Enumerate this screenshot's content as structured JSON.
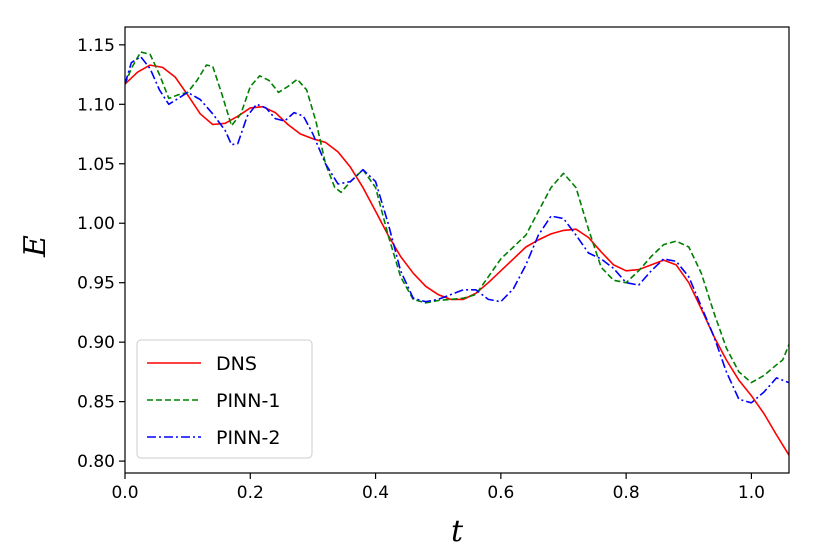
{
  "chart_data": {
    "type": "line",
    "xlabel": "t",
    "ylabel": "E",
    "xlim": [
      0.0,
      1.06
    ],
    "ylim": [
      0.79,
      1.165
    ],
    "x_ticks": [
      0.0,
      0.2,
      0.4,
      0.6,
      0.8,
      1.0
    ],
    "x_tick_labels": [
      "0.0",
      "0.2",
      "0.4",
      "0.6",
      "0.8",
      "1.0"
    ],
    "y_ticks": [
      0.8,
      0.85,
      0.9,
      0.95,
      1.0,
      1.05,
      1.1,
      1.15
    ],
    "y_tick_labels": [
      "0.80",
      "0.85",
      "0.90",
      "0.95",
      "1.00",
      "1.05",
      "1.10",
      "1.15"
    ],
    "grid": false,
    "legend_position": "bottom-left",
    "series": [
      {
        "name": "DNS",
        "color": "#ff0000",
        "style": "solid",
        "points": [
          [
            0.0,
            1.117
          ],
          [
            0.02,
            1.127
          ],
          [
            0.04,
            1.133
          ],
          [
            0.06,
            1.131
          ],
          [
            0.08,
            1.123
          ],
          [
            0.1,
            1.108
          ],
          [
            0.12,
            1.092
          ],
          [
            0.14,
            1.083
          ],
          [
            0.16,
            1.084
          ],
          [
            0.18,
            1.09
          ],
          [
            0.2,
            1.097
          ],
          [
            0.22,
            1.098
          ],
          [
            0.24,
            1.093
          ],
          [
            0.26,
            1.083
          ],
          [
            0.28,
            1.075
          ],
          [
            0.3,
            1.071
          ],
          [
            0.32,
            1.068
          ],
          [
            0.34,
            1.06
          ],
          [
            0.36,
            1.047
          ],
          [
            0.38,
            1.03
          ],
          [
            0.4,
            1.01
          ],
          [
            0.42,
            0.99
          ],
          [
            0.44,
            0.972
          ],
          [
            0.46,
            0.958
          ],
          [
            0.48,
            0.947
          ],
          [
            0.5,
            0.94
          ],
          [
            0.52,
            0.936
          ],
          [
            0.54,
            0.936
          ],
          [
            0.56,
            0.941
          ],
          [
            0.58,
            0.95
          ],
          [
            0.6,
            0.96
          ],
          [
            0.62,
            0.97
          ],
          [
            0.64,
            0.98
          ],
          [
            0.66,
            0.986
          ],
          [
            0.68,
            0.991
          ],
          [
            0.7,
            0.994
          ],
          [
            0.72,
            0.995
          ],
          [
            0.74,
            0.988
          ],
          [
            0.76,
            0.976
          ],
          [
            0.78,
            0.965
          ],
          [
            0.8,
            0.96
          ],
          [
            0.82,
            0.961
          ],
          [
            0.84,
            0.965
          ],
          [
            0.86,
            0.969
          ],
          [
            0.88,
            0.965
          ],
          [
            0.9,
            0.95
          ],
          [
            0.92,
            0.928
          ],
          [
            0.94,
            0.905
          ],
          [
            0.96,
            0.885
          ],
          [
            0.98,
            0.868
          ],
          [
            1.0,
            0.855
          ],
          [
            1.02,
            0.84
          ],
          [
            1.04,
            0.822
          ],
          [
            1.06,
            0.805
          ]
        ]
      },
      {
        "name": "PINN-1",
        "color": "#008000",
        "style": "dashed",
        "points": [
          [
            0.0,
            1.117
          ],
          [
            0.01,
            1.13
          ],
          [
            0.025,
            1.144
          ],
          [
            0.04,
            1.142
          ],
          [
            0.055,
            1.125
          ],
          [
            0.07,
            1.105
          ],
          [
            0.085,
            1.108
          ],
          [
            0.1,
            1.11
          ],
          [
            0.115,
            1.12
          ],
          [
            0.13,
            1.133
          ],
          [
            0.14,
            1.132
          ],
          [
            0.155,
            1.108
          ],
          [
            0.17,
            1.082
          ],
          [
            0.185,
            1.092
          ],
          [
            0.2,
            1.115
          ],
          [
            0.215,
            1.124
          ],
          [
            0.23,
            1.12
          ],
          [
            0.245,
            1.11
          ],
          [
            0.26,
            1.115
          ],
          [
            0.275,
            1.121
          ],
          [
            0.29,
            1.112
          ],
          [
            0.305,
            1.085
          ],
          [
            0.32,
            1.05
          ],
          [
            0.335,
            1.03
          ],
          [
            0.345,
            1.026
          ],
          [
            0.36,
            1.035
          ],
          [
            0.38,
            1.045
          ],
          [
            0.4,
            1.03
          ],
          [
            0.42,
            0.99
          ],
          [
            0.44,
            0.955
          ],
          [
            0.46,
            0.936
          ],
          [
            0.48,
            0.933
          ],
          [
            0.5,
            0.935
          ],
          [
            0.52,
            0.936
          ],
          [
            0.54,
            0.937
          ],
          [
            0.56,
            0.94
          ],
          [
            0.58,
            0.955
          ],
          [
            0.6,
            0.97
          ],
          [
            0.62,
            0.98
          ],
          [
            0.64,
            0.99
          ],
          [
            0.66,
            1.01
          ],
          [
            0.68,
            1.03
          ],
          [
            0.7,
            1.042
          ],
          [
            0.72,
            1.03
          ],
          [
            0.74,
            0.995
          ],
          [
            0.76,
            0.963
          ],
          [
            0.78,
            0.952
          ],
          [
            0.8,
            0.95
          ],
          [
            0.82,
            0.96
          ],
          [
            0.84,
            0.972
          ],
          [
            0.86,
            0.982
          ],
          [
            0.88,
            0.985
          ],
          [
            0.9,
            0.98
          ],
          [
            0.92,
            0.958
          ],
          [
            0.94,
            0.925
          ],
          [
            0.96,
            0.895
          ],
          [
            0.98,
            0.875
          ],
          [
            1.0,
            0.866
          ],
          [
            1.02,
            0.872
          ],
          [
            1.04,
            0.881
          ],
          [
            1.05,
            0.885
          ],
          [
            1.06,
            0.898
          ]
        ]
      },
      {
        "name": "PINN-2",
        "color": "#0000ff",
        "style": "dashdot",
        "points": [
          [
            0.0,
            1.117
          ],
          [
            0.01,
            1.135
          ],
          [
            0.025,
            1.14
          ],
          [
            0.04,
            1.13
          ],
          [
            0.055,
            1.112
          ],
          [
            0.07,
            1.1
          ],
          [
            0.085,
            1.105
          ],
          [
            0.1,
            1.11
          ],
          [
            0.12,
            1.104
          ],
          [
            0.14,
            1.092
          ],
          [
            0.16,
            1.078
          ],
          [
            0.17,
            1.066
          ],
          [
            0.18,
            1.067
          ],
          [
            0.195,
            1.09
          ],
          [
            0.21,
            1.1
          ],
          [
            0.225,
            1.097
          ],
          [
            0.24,
            1.088
          ],
          [
            0.255,
            1.086
          ],
          [
            0.27,
            1.093
          ],
          [
            0.285,
            1.09
          ],
          [
            0.3,
            1.075
          ],
          [
            0.32,
            1.05
          ],
          [
            0.34,
            1.033
          ],
          [
            0.36,
            1.035
          ],
          [
            0.38,
            1.045
          ],
          [
            0.4,
            1.035
          ],
          [
            0.42,
            1.0
          ],
          [
            0.44,
            0.96
          ],
          [
            0.46,
            0.937
          ],
          [
            0.48,
            0.934
          ],
          [
            0.5,
            0.936
          ],
          [
            0.52,
            0.94
          ],
          [
            0.54,
            0.944
          ],
          [
            0.56,
            0.944
          ],
          [
            0.58,
            0.936
          ],
          [
            0.6,
            0.934
          ],
          [
            0.62,
            0.945
          ],
          [
            0.64,
            0.965
          ],
          [
            0.66,
            0.99
          ],
          [
            0.68,
            1.006
          ],
          [
            0.7,
            1.004
          ],
          [
            0.72,
            0.99
          ],
          [
            0.74,
            0.975
          ],
          [
            0.76,
            0.97
          ],
          [
            0.78,
            0.962
          ],
          [
            0.8,
            0.95
          ],
          [
            0.82,
            0.948
          ],
          [
            0.84,
            0.96
          ],
          [
            0.86,
            0.97
          ],
          [
            0.88,
            0.968
          ],
          [
            0.9,
            0.955
          ],
          [
            0.92,
            0.93
          ],
          [
            0.94,
            0.905
          ],
          [
            0.96,
            0.875
          ],
          [
            0.98,
            0.852
          ],
          [
            1.0,
            0.849
          ],
          [
            1.02,
            0.858
          ],
          [
            1.04,
            0.87
          ],
          [
            1.06,
            0.866
          ]
        ]
      }
    ]
  }
}
